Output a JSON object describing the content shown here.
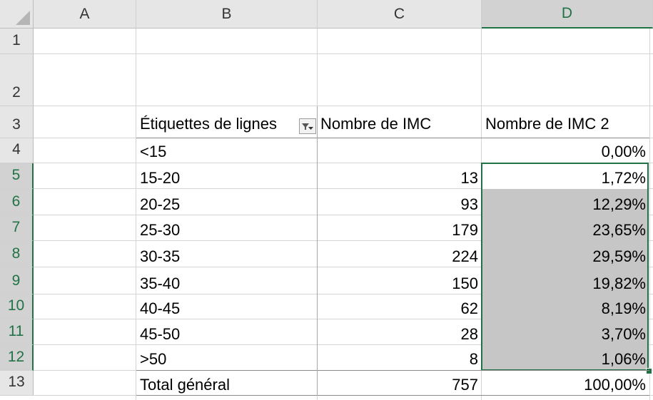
{
  "columns": [
    "A",
    "B",
    "C",
    "D"
  ],
  "rows": [
    "1",
    "2",
    "3",
    "4",
    "5",
    "6",
    "7",
    "8",
    "9",
    "10",
    "11",
    "12",
    "13"
  ],
  "pivot": {
    "header_label": "Étiquettes de lignes",
    "header_count": "Nombre de IMC",
    "header_count2": "Nombre de IMC 2",
    "items": [
      {
        "label": "<15",
        "count": "",
        "pct": "0,00%"
      },
      {
        "label": "15-20",
        "count": "13",
        "pct": "1,72%"
      },
      {
        "label": "20-25",
        "count": "93",
        "pct": "12,29%"
      },
      {
        "label": "25-30",
        "count": "179",
        "pct": "23,65%"
      },
      {
        "label": "30-35",
        "count": "224",
        "pct": "29,59%"
      },
      {
        "label": "35-40",
        "count": "150",
        "pct": "19,82%"
      },
      {
        "label": "40-45",
        "count": "62",
        "pct": "8,19%"
      },
      {
        "label": "45-50",
        "count": "28",
        "pct": "3,70%"
      },
      {
        "label": ">50",
        "count": "8",
        "pct": "1,06%"
      }
    ],
    "total_label": "Total général",
    "total_count": "757",
    "total_pct": "100,00%"
  },
  "selection": {
    "range": "D5:D12",
    "accent_color": "#217346"
  },
  "icons": {
    "filter": "filter-dropdown-icon"
  }
}
